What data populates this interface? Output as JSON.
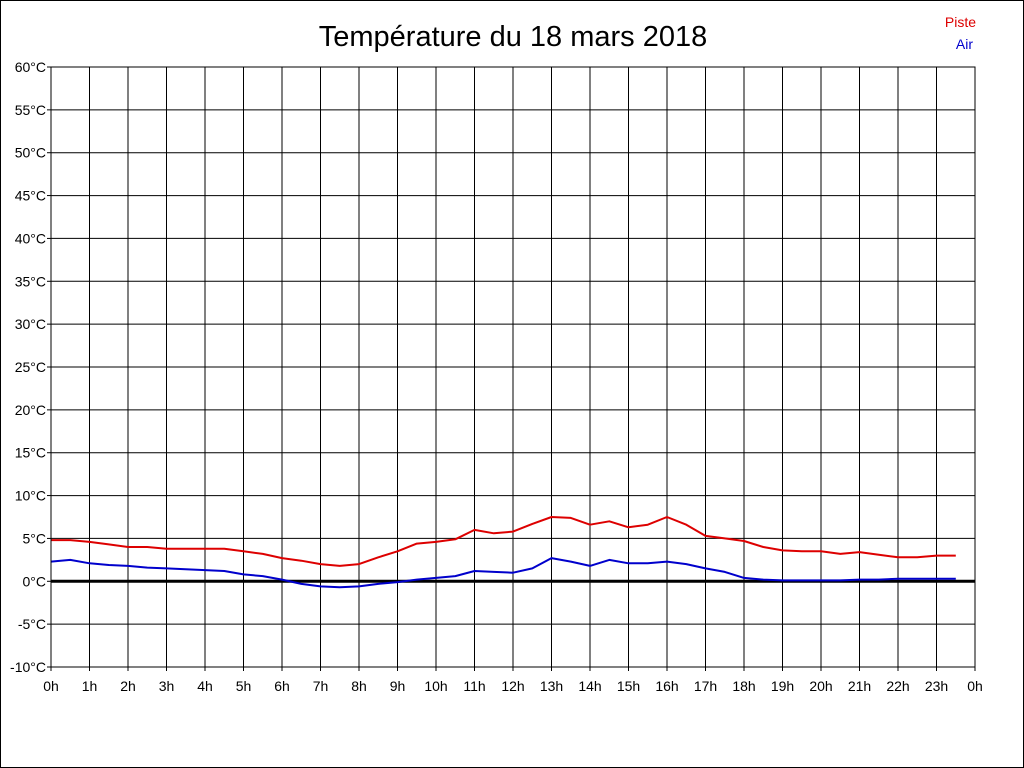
{
  "chart_data": {
    "type": "line",
    "title": "Température du 18 mars 2018",
    "xlabel": "",
    "ylabel": "",
    "x_unit": "hour",
    "x_tick_labels": [
      "0h",
      "1h",
      "2h",
      "3h",
      "4h",
      "5h",
      "6h",
      "7h",
      "8h",
      "9h",
      "10h",
      "11h",
      "12h",
      "13h",
      "14h",
      "15h",
      "16h",
      "17h",
      "18h",
      "19h",
      "20h",
      "21h",
      "22h",
      "23h",
      "0h"
    ],
    "y_tick_labels": [
      "60°C",
      "55°C",
      "50°C",
      "45°C",
      "40°C",
      "35°C",
      "30°C",
      "25°C",
      "20°C",
      "15°C",
      "10°C",
      "5°C",
      "0°C",
      "-5°C",
      "-10°C"
    ],
    "xlim": [
      0,
      24
    ],
    "ylim": [
      -10,
      60
    ],
    "y_step": 5,
    "grid": true,
    "zero_line": true,
    "legend_position": "top-right",
    "x": [
      0,
      0.5,
      1,
      1.5,
      2,
      2.5,
      3,
      3.5,
      4,
      4.5,
      5,
      5.5,
      6,
      6.5,
      7,
      7.5,
      8,
      8.5,
      9,
      9.5,
      10,
      10.5,
      11,
      11.5,
      12,
      12.5,
      13,
      13.5,
      14,
      14.5,
      15,
      15.5,
      16,
      16.5,
      17,
      17.5,
      18,
      18.5,
      19,
      19.5,
      20,
      20.5,
      21,
      21.5,
      22,
      22.5,
      23,
      23.5
    ],
    "series": [
      {
        "name": "Piste",
        "color": "#dd0000",
        "values": [
          4.8,
          4.8,
          4.6,
          4.3,
          4.0,
          4.0,
          3.8,
          3.8,
          3.8,
          3.8,
          3.5,
          3.2,
          2.7,
          2.4,
          2.0,
          1.8,
          2.0,
          2.8,
          3.5,
          4.4,
          4.6,
          4.9,
          6.0,
          5.6,
          5.8,
          6.7,
          7.5,
          7.4,
          6.6,
          7.0,
          6.3,
          6.6,
          7.5,
          6.6,
          5.3,
          5.0,
          4.7,
          4.0,
          3.6,
          3.5,
          3.5,
          3.2,
          3.4,
          3.1,
          2.8,
          2.8,
          3.0,
          3.0
        ]
      },
      {
        "name": "Air",
        "color": "#0000cc",
        "values": [
          2.3,
          2.5,
          2.1,
          1.9,
          1.8,
          1.6,
          1.5,
          1.4,
          1.3,
          1.2,
          0.8,
          0.6,
          0.2,
          -0.3,
          -0.6,
          -0.7,
          -0.6,
          -0.3,
          -0.1,
          0.2,
          0.4,
          0.6,
          1.2,
          1.1,
          1.0,
          1.5,
          2.7,
          2.3,
          1.8,
          2.5,
          2.1,
          2.1,
          2.3,
          2.0,
          1.5,
          1.1,
          0.4,
          0.2,
          0.1,
          0.1,
          0.1,
          0.1,
          0.2,
          0.2,
          0.3,
          0.3,
          0.3,
          0.3
        ]
      }
    ]
  }
}
